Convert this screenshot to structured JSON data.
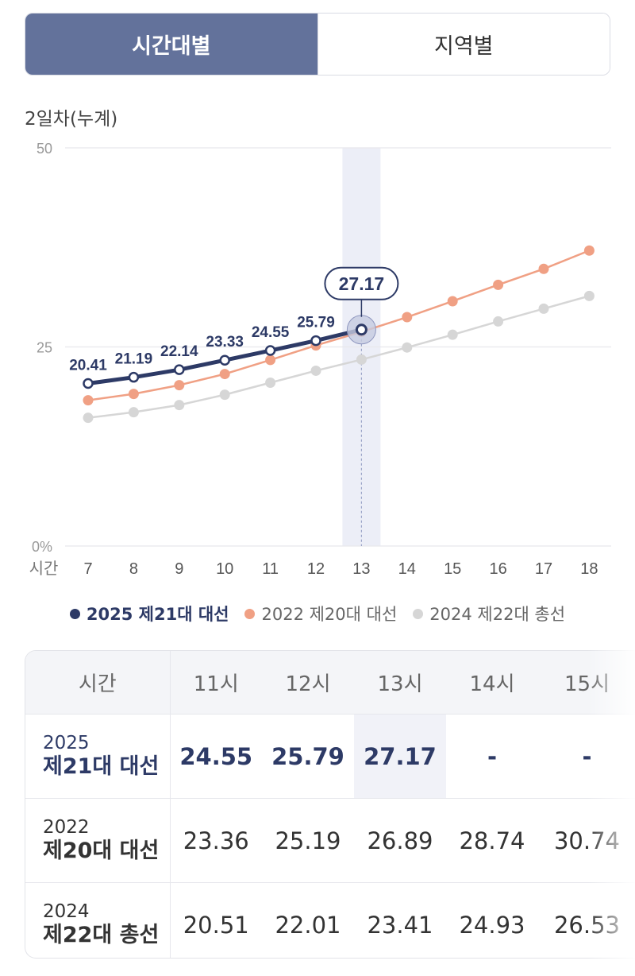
{
  "tabs": {
    "active": "시간대별",
    "inactive": "지역별"
  },
  "chart_title": "2일차(누계)",
  "chart_data": {
    "type": "line",
    "x": [
      7,
      8,
      9,
      10,
      11,
      12,
      13,
      14,
      15,
      16,
      17,
      18
    ],
    "x_axis_label": "시간",
    "y_ticks": [
      "0%",
      "25",
      "50"
    ],
    "ylim": [
      0,
      50
    ],
    "highlight_x": 13,
    "highlight_value": "27.17",
    "series": [
      {
        "name": "2025 제21대 대선",
        "color": "#2d3a66",
        "values": [
          20.41,
          21.19,
          22.14,
          23.33,
          24.55,
          25.79,
          27.17,
          null,
          null,
          null,
          null,
          null
        ],
        "labels": [
          "20.41",
          "21.19",
          "22.14",
          "23.33",
          "24.55",
          "25.79"
        ]
      },
      {
        "name": "2022 제20대 대선",
        "color": "#f0a084",
        "values": [
          18.3,
          19.1,
          20.2,
          21.6,
          23.36,
          25.19,
          26.89,
          28.74,
          30.74,
          32.8,
          34.8,
          37.1
        ]
      },
      {
        "name": "2024 제22대 총선",
        "color": "#d6d6d6",
        "values": [
          16.1,
          16.8,
          17.7,
          19.0,
          20.51,
          22.01,
          23.41,
          24.93,
          26.53,
          28.2,
          29.8,
          31.4
        ]
      }
    ]
  },
  "legend": [
    {
      "label": "2025 제21대 대선",
      "color": "#2d3a66"
    },
    {
      "label": "2022 제20대 대선",
      "color": "#f0a084"
    },
    {
      "label": "2024 제22대 총선",
      "color": "#d6d6d6"
    }
  ],
  "table": {
    "header": [
      "시간",
      "11시",
      "12시",
      "13시",
      "14시",
      "15시"
    ],
    "rows": [
      {
        "year": "2025",
        "name": "제21대 대선",
        "values": [
          "24.55",
          "25.79",
          "27.17",
          "-",
          "-"
        ]
      },
      {
        "year": "2022",
        "name": "제20대 대선",
        "values": [
          "23.36",
          "25.19",
          "26.89",
          "28.74",
          "30.74"
        ]
      },
      {
        "year": "2024",
        "name": "제22대 총선",
        "values": [
          "20.51",
          "22.01",
          "23.41",
          "24.93",
          "26.53"
        ]
      }
    ]
  }
}
